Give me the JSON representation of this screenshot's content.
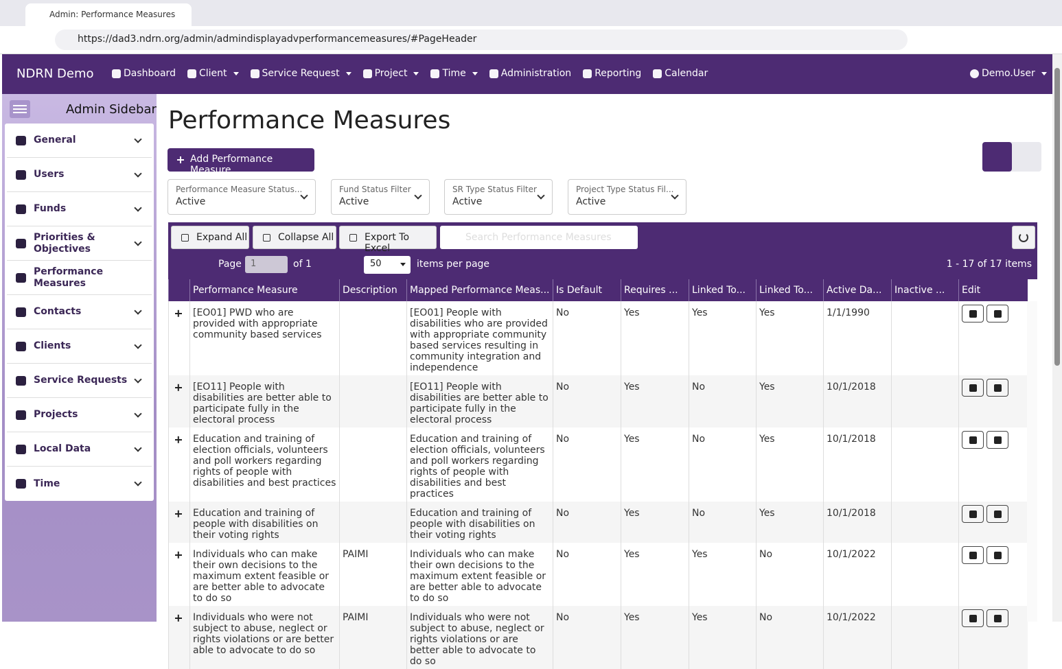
{
  "browser": {
    "tab_title": "Admin: Performance Measures",
    "url": "https://dad3.ndrn.org/admin/admindisplayadvperformancemeasures/#PageHeader"
  },
  "navbar": {
    "brand": "NDRN Demo",
    "items": [
      {
        "label": "Dashboard",
        "dropdown": false
      },
      {
        "label": "Client",
        "dropdown": true
      },
      {
        "label": "Service Request",
        "dropdown": true
      },
      {
        "label": "Project",
        "dropdown": true
      },
      {
        "label": "Time",
        "dropdown": true
      },
      {
        "label": "Administration",
        "dropdown": false
      },
      {
        "label": "Reporting",
        "dropdown": false
      },
      {
        "label": "Calendar",
        "dropdown": false
      }
    ],
    "user": "Demo.User"
  },
  "sidebar": {
    "title": "Admin Sidebar",
    "items": [
      {
        "label": "General",
        "expandable": true
      },
      {
        "label": "Users",
        "expandable": true
      },
      {
        "label": "Funds",
        "expandable": true
      },
      {
        "label": "Priorities & Objectives",
        "expandable": true
      },
      {
        "label": "Performance Measures",
        "expandable": false
      },
      {
        "label": "Contacts",
        "expandable": true
      },
      {
        "label": "Clients",
        "expandable": true
      },
      {
        "label": "Service Requests",
        "expandable": true
      },
      {
        "label": "Projects",
        "expandable": true
      },
      {
        "label": "Local Data",
        "expandable": true
      },
      {
        "label": "Time",
        "expandable": true
      }
    ]
  },
  "page": {
    "title": "Performance Measures",
    "add_button": "Add Performance Measure",
    "filters": [
      {
        "label": "Performance Measure Status...",
        "value": "Active"
      },
      {
        "label": "Fund Status Filter",
        "value": "Active"
      },
      {
        "label": "SR Type Status Filter",
        "value": "Active"
      },
      {
        "label": "Project Type Status Fil...",
        "value": "Active"
      }
    ]
  },
  "grid": {
    "toolbar": {
      "expand_all": "Expand All",
      "collapse_all": "Collapse All",
      "export": "Export To Excel",
      "search_placeholder": "Search Performance Measures"
    },
    "pager": {
      "page_label": "Page",
      "page": "1",
      "of": "of 1",
      "page_size": "50",
      "page_size_label": "items per page",
      "summary": "1 - 17 of 17 items"
    },
    "columns": [
      "Performance Measure",
      "Description",
      "Mapped Performance Meas...",
      "Is Default",
      "Requires ...",
      "Linked To...",
      "Linked To...",
      "Active Da...",
      "Inactive ...",
      "Edit"
    ],
    "rows": [
      [
        "[EO01] PWD who are provided with appropriate community based services",
        null,
        "[EO01] People with disabilities who are provided with appropriate community based services resulting in community integration and independence",
        "No",
        "Yes",
        "Yes",
        "Yes",
        "1/1/1990",
        null
      ],
      [
        "[EO11] People with disabilities are better able to participate fully in the electoral process",
        null,
        "[EO11] People with disabilities are better able to participate fully in the electoral process",
        "No",
        "Yes",
        "No",
        "Yes",
        "10/1/2018",
        null
      ],
      [
        "Education and training of election officials, volunteers and poll workers regarding rights of people with disabilities and best practices",
        null,
        "Education and training of election officials, volunteers and poll workers regarding rights of people with disabilities and best practices",
        "No",
        "Yes",
        "No",
        "Yes",
        "10/1/2018",
        null
      ],
      [
        "Education and training of people with disabilities on their voting rights",
        null,
        "Education and training of people with disabilities on their voting rights",
        "No",
        "Yes",
        "No",
        "Yes",
        "10/1/2018",
        null
      ],
      [
        "Individuals who can make their own decisions to the maximum extent feasible or are better able to advocate to do so",
        "PAIMI",
        "Individuals who can make their own decisions to the maximum extent feasible or are better able to advocate to do so",
        "No",
        "Yes",
        "Yes",
        "No",
        "10/1/2022",
        null
      ],
      [
        "Individuals who were not subject to abuse, neglect or rights violations or are better able to advocate to do so",
        "PAIMI",
        "Individuals who were not subject to abuse, neglect or rights violations or are better able to advocate to do so",
        "No",
        "Yes",
        "Yes",
        "No",
        "10/1/2022",
        null
      ]
    ]
  }
}
